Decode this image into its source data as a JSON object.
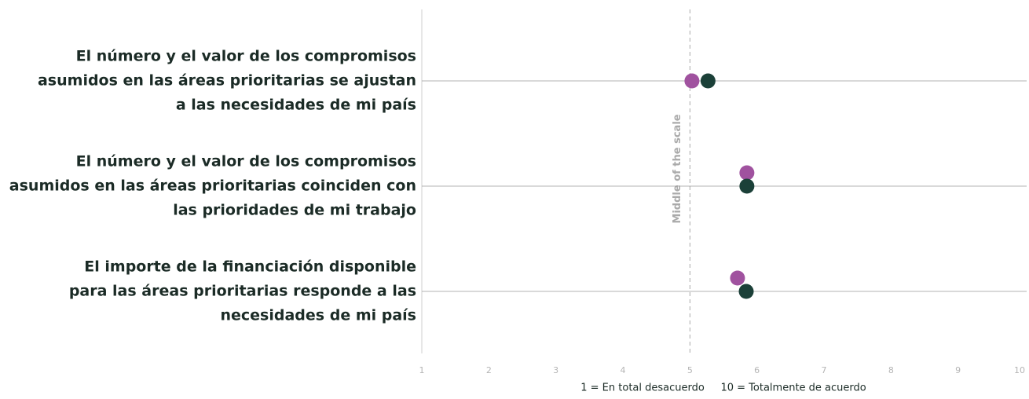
{
  "chart_data": {
    "type": "dot",
    "categories": [
      "El número y el valor de los compromisos\nasumidos en las áreas prioritarias se ajustan\na las necesidades de mi país",
      "El número y el valor de los compromisos\nasumidos en las áreas prioritarias coinciden con\nlas prioridades de mi trabajo",
      "El importe de la financiación disponible\npara las áreas prioritarias responde a las\nnecesidades de mi país"
    ],
    "series": [
      {
        "color": "#a0529f",
        "values": [
          5.03,
          5.85,
          5.71
        ]
      },
      {
        "color": "#1b4038",
        "values": [
          5.27,
          5.85,
          5.84
        ]
      }
    ],
    "xlim": [
      1,
      10
    ],
    "xticks": [
      1,
      2,
      3,
      4,
      5,
      6,
      7,
      8,
      9,
      10
    ],
    "xlabel": "1 = En total desacuerdo     10 = Totalmente de acuerdo",
    "reference_line": {
      "value": 5,
      "label": "Middle of the scale"
    }
  }
}
